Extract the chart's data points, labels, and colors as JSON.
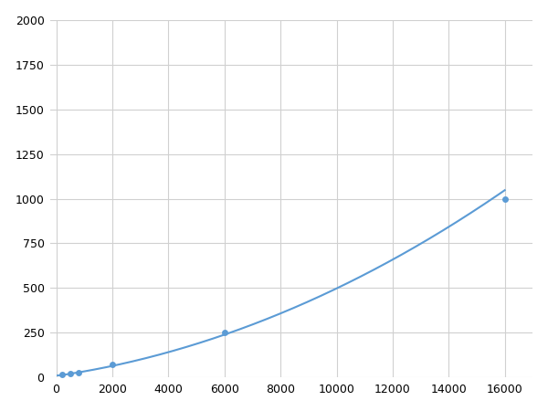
{
  "x": [
    0,
    200,
    500,
    800,
    2000,
    6000,
    16000
  ],
  "y": [
    0,
    15,
    20,
    25,
    75,
    250,
    1000
  ],
  "line_color": "#5B9BD5",
  "marker_x": [
    200,
    500,
    800,
    2000,
    6000,
    16000
  ],
  "marker_y": [
    15,
    20,
    25,
    75,
    250,
    1000
  ],
  "marker_color": "#5B9BD5",
  "marker_size": 5,
  "line_width": 1.5,
  "xlim": [
    -200,
    17000
  ],
  "ylim": [
    0,
    2000
  ],
  "xticks": [
    0,
    2000,
    4000,
    6000,
    8000,
    10000,
    12000,
    14000,
    16000
  ],
  "yticks": [
    0,
    250,
    500,
    750,
    1000,
    1250,
    1500,
    1750,
    2000
  ],
  "grid_color": "#d0d0d0",
  "background_color": "#ffffff",
  "tick_fontsize": 9,
  "figsize": [
    6.0,
    4.5
  ],
  "dpi": 100
}
